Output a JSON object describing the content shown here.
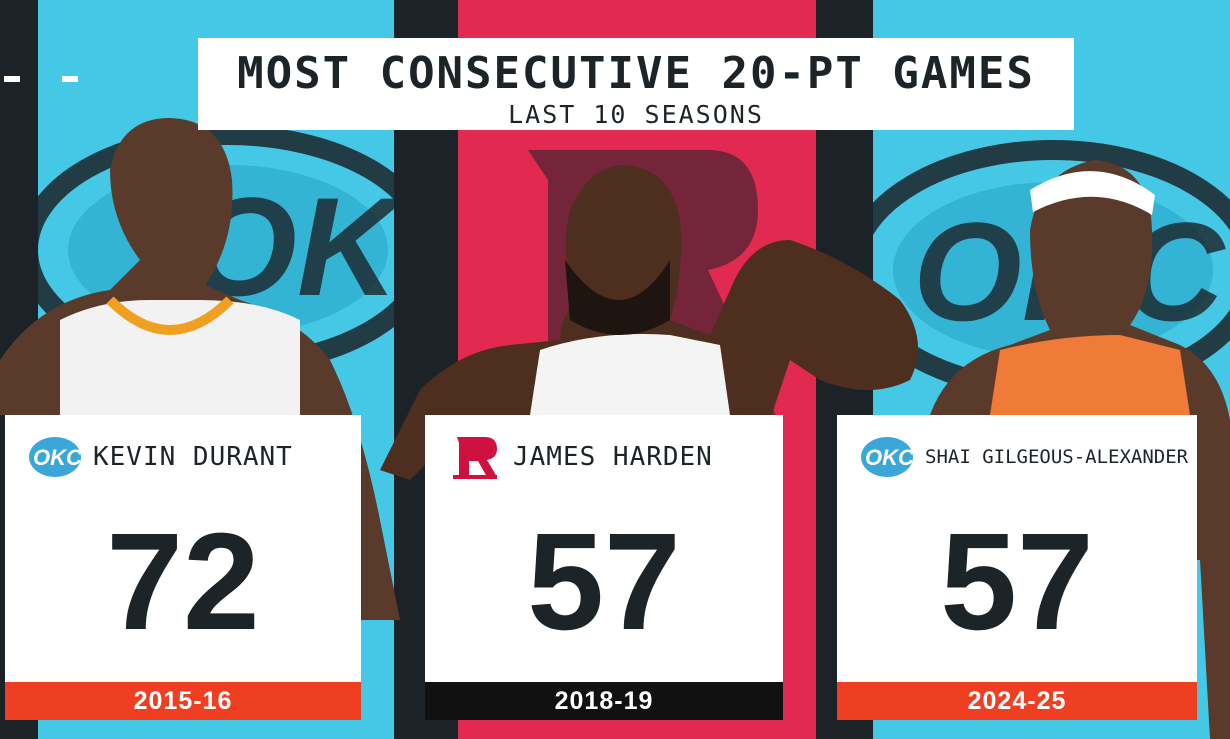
{
  "title": "MOST CONSECUTIVE 20-PT GAMES",
  "subtitle": "LAST 10 SEASONS",
  "colors": {
    "background_dark": "#1b2328",
    "thunder_blue": "#45c8e6",
    "rockets_red": "#e2294f",
    "season_orange": "#ef3f22",
    "season_black": "#111111",
    "text_dark": "#1c2428"
  },
  "cards": [
    {
      "player": "KEVIN DURANT",
      "team_icon": "okc-logo-icon",
      "value": "72",
      "season": "2015-16"
    },
    {
      "player": "JAMES HARDEN",
      "team_icon": "rockets-logo-icon",
      "value": "57",
      "season": "2018-19"
    },
    {
      "player": "SHAI GILGEOUS-ALEXANDER",
      "team_icon": "okc-logo-icon",
      "value": "57",
      "season": "2024-25"
    }
  ]
}
